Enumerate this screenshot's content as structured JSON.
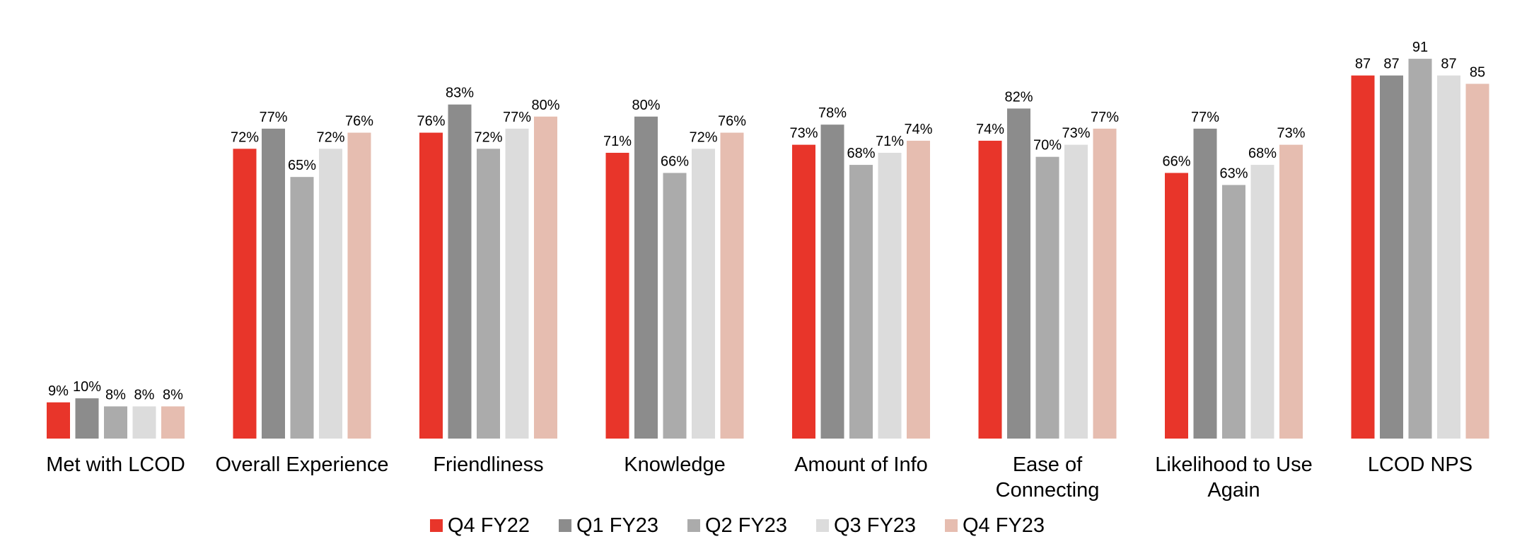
{
  "chart_data": {
    "type": "bar",
    "title": "",
    "xlabel": "",
    "ylabel": "",
    "ylim": [
      0,
      100
    ],
    "grid": false,
    "legend_position": "bottom",
    "categories": [
      [
        "Met with LCOD"
      ],
      [
        "Overall Experience"
      ],
      [
        "Friendliness"
      ],
      [
        "Knowledge"
      ],
      [
        "Amount of Info"
      ],
      [
        "Ease of",
        "Connecting"
      ],
      [
        "Likelihood to Use",
        "Again"
      ],
      [
        "LCOD NPS"
      ]
    ],
    "series": [
      {
        "name": "Q4 FY22",
        "color": "#e8352a",
        "values": [
          9,
          72,
          76,
          71,
          73,
          74,
          66,
          87
        ],
        "labels": [
          "9%",
          "72%",
          "76%",
          "71%",
          "73%",
          "74%",
          "66%",
          "87"
        ]
      },
      {
        "name": "Q1 FY23",
        "color": "#8c8c8c",
        "values": [
          10,
          77,
          83,
          80,
          78,
          82,
          77,
          87
        ],
        "labels": [
          "10%",
          "77%",
          "83%",
          "80%",
          "78%",
          "82%",
          "77%",
          "87"
        ]
      },
      {
        "name": "Q2 FY23",
        "color": "#ababab",
        "values": [
          8,
          65,
          72,
          66,
          68,
          70,
          63,
          91
        ],
        "labels": [
          "8%",
          "65%",
          "72%",
          "66%",
          "68%",
          "70%",
          "63%",
          "91"
        ]
      },
      {
        "name": "Q3 FY23",
        "color": "#dcdcdc",
        "values": [
          8,
          72,
          77,
          72,
          71,
          73,
          68,
          87
        ],
        "labels": [
          "8%",
          "72%",
          "77%",
          "72%",
          "71%",
          "73%",
          "68%",
          "87"
        ]
      },
      {
        "name": "Q4 FY23",
        "color": "#e6bdb0",
        "values": [
          8,
          76,
          80,
          76,
          74,
          77,
          73,
          85
        ],
        "labels": [
          "8%",
          "76%",
          "80%",
          "76%",
          "74%",
          "77%",
          "73%",
          "85"
        ]
      }
    ]
  }
}
